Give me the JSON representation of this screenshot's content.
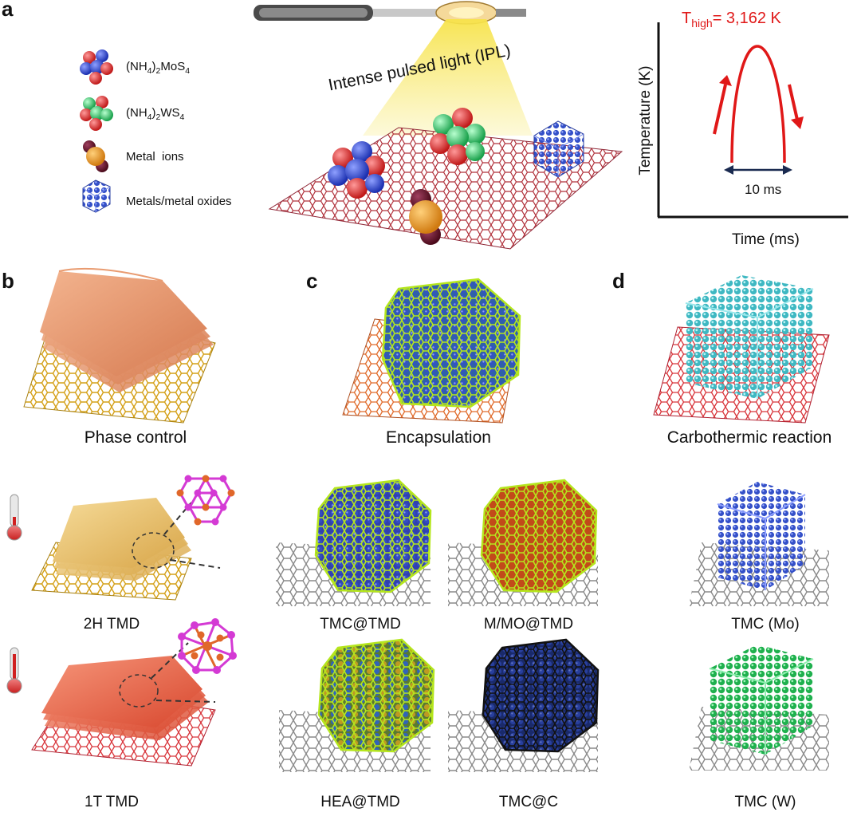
{
  "panel_labels": {
    "a": "a",
    "b": "b",
    "c": "c",
    "d": "d"
  },
  "legend": [
    {
      "formula_parts": [
        "(NH",
        "4",
        ")",
        "2",
        "MoS",
        "4"
      ],
      "icon": "mos4-cluster-icon"
    },
    {
      "formula_parts": [
        "(NH",
        "4",
        ")",
        "2",
        "WS",
        "4"
      ],
      "icon": "ws4-cluster-icon"
    },
    {
      "label": "Metal  ions",
      "icon": "metal-ion-icon"
    },
    {
      "label": "Metals/metal oxides",
      "icon": "metal-oxide-cube-icon"
    }
  ],
  "ipl_label": "Intense pulsed light (IPL)",
  "temp_plot": {
    "y_label": "Temperature (K)",
    "x_label": "Time (ms)",
    "peak_prefix": "T",
    "peak_sub": "high",
    "peak_value": "= 3,162 K",
    "duration_label": "10 ms"
  },
  "captions": {
    "b_main": "Phase control",
    "c_main": "Encapsulation",
    "d_main": "Carbothermic reaction",
    "b_row2": "2H TMD",
    "b_row3": "1T TMD",
    "c_row2_left": "TMC@TMD",
    "c_row2_right": "M/MO@TMD",
    "c_row3_left": "HEA@TMD",
    "c_row3_right": "TMC@C",
    "d_row2": "TMC (Mo)",
    "d_row3": "TMC (W)"
  },
  "colors": {
    "mo_blue": "#2f4fd0",
    "red": "#e02020",
    "green": "#22c45a",
    "cage_green": "#b5e61d",
    "teal": "#3fc4c9",
    "gold": "#d4a017",
    "graphene_red": "#c0302a",
    "orange": "#e0672a",
    "magenta": "#d43ad4"
  }
}
